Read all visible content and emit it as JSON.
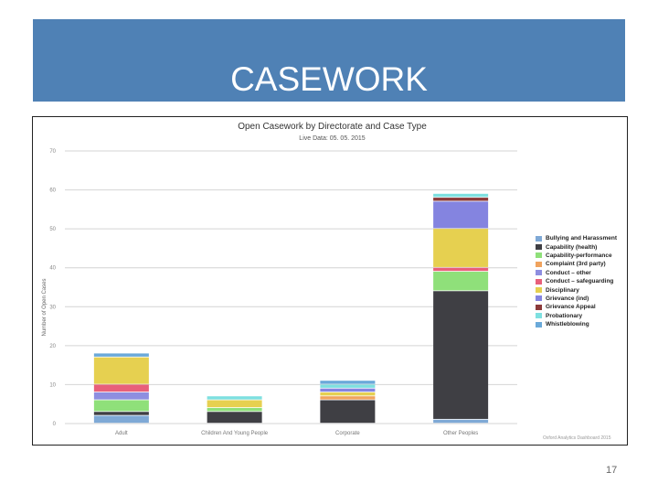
{
  "slide": {
    "title": "CASEWORK",
    "page_number": "17"
  },
  "chart_data": {
    "type": "bar",
    "stacked": true,
    "title": "Open Casework by Directorate and Case Type",
    "subtitle": "Live Data: 05. 05. 2015",
    "xlabel": "",
    "ylabel": "Number of Open Cases",
    "ylim": [
      0,
      70
    ],
    "yticks": [
      0,
      10,
      20,
      30,
      40,
      50,
      60,
      70
    ],
    "grid": true,
    "legend_position": "right",
    "credit": "Oxford Analytics Dashboard 2015",
    "categories": [
      "Adult",
      "Children And Young People",
      "Corporate",
      "Other Peoples"
    ],
    "series": [
      {
        "name": "Bullying and Harassment",
        "color": "#7fa9d6",
        "values": [
          2,
          0,
          0,
          1
        ]
      },
      {
        "name": "Capability (health)",
        "color": "#3f3f44",
        "values": [
          1,
          3,
          6,
          33
        ]
      },
      {
        "name": "Capability-performance",
        "color": "#8fe07a",
        "values": [
          3,
          1,
          0,
          5
        ]
      },
      {
        "name": "Complaint (3rd party)",
        "color": "#f0a35e",
        "values": [
          0,
          0,
          1,
          0
        ]
      },
      {
        "name": "Conduct – other",
        "color": "#8e8ee0",
        "values": [
          2,
          0,
          0,
          0
        ]
      },
      {
        "name": "Conduct – safeguarding",
        "color": "#e8607a",
        "values": [
          2,
          0,
          0,
          1
        ]
      },
      {
        "name": "Disciplinary",
        "color": "#e6d050",
        "values": [
          7,
          2,
          1,
          10
        ]
      },
      {
        "name": "Grievance (ind)",
        "color": "#8484e0",
        "values": [
          0,
          0,
          1,
          7
        ]
      },
      {
        "name": "Grievance Appeal",
        "color": "#8b3a3a",
        "values": [
          0,
          0,
          0,
          1
        ]
      },
      {
        "name": "Probationary",
        "color": "#7ee0e0",
        "values": [
          0,
          1,
          1,
          1
        ]
      },
      {
        "name": "Whistleblowing",
        "color": "#6aa9d9",
        "values": [
          1,
          0,
          1,
          0
        ]
      }
    ]
  }
}
